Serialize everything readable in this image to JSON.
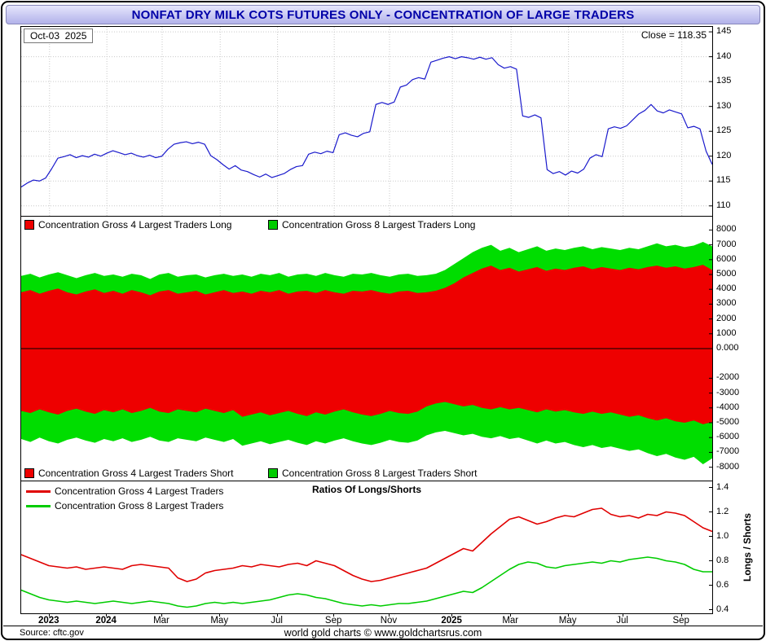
{
  "title": "NONFAT DRY MILK COTS FUTURES ONLY - CONCENTRATION OF LARGE TRADERS",
  "top_panel": {
    "date_label": "Oct-03  2025",
    "close_label": "Close = 118.35"
  },
  "middle_panel": {
    "legend_top": [
      {
        "label": "Concentration Gross 4 Largest Traders Long",
        "color": "#ee0000"
      },
      {
        "label": "Concentration Gross 8 Largest Traders Long",
        "color": "#00cc00"
      }
    ],
    "legend_bottom": [
      {
        "label": "Concentration Gross 4 Largest Traders Short",
        "color": "#ee0000"
      },
      {
        "label": "Concentration Gross 8 Largest Traders Short",
        "color": "#00cc00"
      }
    ]
  },
  "bottom_panel": {
    "title": "Ratios Of Longs/Shorts",
    "ylabel": "Longs / Shorts",
    "legend": [
      {
        "label": "Concentration Gross 4 Largest Traders",
        "color": "#e00000"
      },
      {
        "label": "Concentration Gross 8 Largest Traders",
        "color": "#00cc00"
      }
    ]
  },
  "footer": {
    "source": "Source: cftc.gov",
    "credit": "world gold charts © www.goldchartsrus.com"
  },
  "x_ticks": [
    {
      "label": "2023",
      "pos": 0.041,
      "bold": true
    },
    {
      "label": "2024",
      "pos": 0.124,
      "bold": true
    },
    {
      "label": "Mar",
      "pos": 0.204
    },
    {
      "label": "May",
      "pos": 0.288
    },
    {
      "label": "Jul",
      "pos": 0.371
    },
    {
      "label": "Sep",
      "pos": 0.453
    },
    {
      "label": "Nov",
      "pos": 0.533
    },
    {
      "label": "2025",
      "pos": 0.624,
      "bold": true
    },
    {
      "label": "Mar",
      "pos": 0.709
    },
    {
      "label": "May",
      "pos": 0.792
    },
    {
      "label": "Jul",
      "pos": 0.871
    },
    {
      "label": "Sep",
      "pos": 0.956
    }
  ],
  "chart_data": [
    {
      "type": "line",
      "title": "NFDM futures price",
      "ylim": [
        108,
        146
      ],
      "grid": true,
      "yticks": [
        {
          "v": 145,
          "l": "145"
        },
        {
          "v": 140,
          "l": "140"
        },
        {
          "v": 135,
          "l": "135"
        },
        {
          "v": 130,
          "l": "130"
        },
        {
          "v": 125,
          "l": "125"
        },
        {
          "v": 120,
          "l": "120"
        },
        {
          "v": 115,
          "l": "115"
        },
        {
          "v": 110,
          "l": "110"
        }
      ],
      "series": [
        {
          "name": "price-line",
          "color": "#1a1acc",
          "width": 1.2,
          "values": [
            113.8,
            114.6,
            115.2,
            115.0,
            115.6,
            117.5,
            119.6,
            119.9,
            120.3,
            119.7,
            120.1,
            119.8,
            120.4,
            120.0,
            120.6,
            121.1,
            120.7,
            120.3,
            120.6,
            120.1,
            119.8,
            120.2,
            119.7,
            120.0,
            121.4,
            122.4,
            122.7,
            122.9,
            122.5,
            122.8,
            122.4,
            120.1,
            119.3,
            118.3,
            117.4,
            118.1,
            117.2,
            116.9,
            116.3,
            115.8,
            116.4,
            115.7,
            116.1,
            116.5,
            117.3,
            117.9,
            118.1,
            120.4,
            120.8,
            120.5,
            121.0,
            120.7,
            124.3,
            124.7,
            124.2,
            123.9,
            124.6,
            124.9,
            130.4,
            130.8,
            130.4,
            130.9,
            133.9,
            134.3,
            135.4,
            135.8,
            135.5,
            138.9,
            139.3,
            139.7,
            140.0,
            139.6,
            140.0,
            139.8,
            139.5,
            139.9,
            139.5,
            139.8,
            138.4,
            137.7,
            138.0,
            137.5,
            128.1,
            127.8,
            128.3,
            127.7,
            117.3,
            116.5,
            116.9,
            116.2,
            117.0,
            116.6,
            117.4,
            119.6,
            120.3,
            119.9,
            125.5,
            125.9,
            125.6,
            126.1,
            127.3,
            128.5,
            129.2,
            130.4,
            129.1,
            128.7,
            129.3,
            128.9,
            128.5,
            125.7,
            126.0,
            125.5,
            121.0,
            118.35
          ]
        }
      ]
    },
    {
      "type": "area",
      "title": "Concentration of large traders (contracts, longs positive / shorts negative)",
      "ylim": [
        -8900,
        8900
      ],
      "zeroline": true,
      "yticks": [
        {
          "v": 8000,
          "l": "8000"
        },
        {
          "v": 7000,
          "l": "7000"
        },
        {
          "v": 6000,
          "l": "6000"
        },
        {
          "v": 5000,
          "l": "5000"
        },
        {
          "v": 4000,
          "l": "4000"
        },
        {
          "v": 3000,
          "l": "3000"
        },
        {
          "v": 2000,
          "l": "2000"
        },
        {
          "v": 1000,
          "l": "1000"
        },
        {
          "v": 0,
          "l": "0.000"
        },
        {
          "v": -2000,
          "l": "-2000"
        },
        {
          "v": -3000,
          "l": "-3000"
        },
        {
          "v": -4000,
          "l": "-4000"
        },
        {
          "v": -5000,
          "l": "-5000"
        },
        {
          "v": -6000,
          "l": "-6000"
        },
        {
          "v": -7000,
          "l": "-7000"
        },
        {
          "v": -8000,
          "l": "-8000"
        }
      ],
      "areas": [
        {
          "name": "gross-8-largest-area",
          "color": "#00dd00",
          "top": [
            4900,
            5050,
            4800,
            5000,
            5150,
            4950,
            4750,
            4950,
            5100,
            4900,
            5000,
            4850,
            5050,
            4950,
            4700,
            5000,
            5100,
            4850,
            4950,
            5000,
            4800,
            4950,
            5050,
            4900,
            5000,
            4850,
            5050,
            4950,
            5100,
            4850,
            5000,
            5050,
            4900,
            5100,
            4950,
            4850,
            5050,
            5000,
            5100,
            4950,
            4850,
            5000,
            5050,
            4900,
            4950,
            5050,
            5300,
            5700,
            6100,
            6500,
            6800,
            7000,
            6600,
            6800,
            6500,
            6700,
            6900,
            6600,
            6750,
            6650,
            6800,
            6900,
            6700,
            6850,
            6750,
            6650,
            6800,
            6700,
            6900,
            7100,
            6900,
            7000,
            6850,
            6950,
            7200,
            6900
          ],
          "bottom": [
            -6100,
            -6300,
            -6000,
            -6250,
            -6400,
            -6150,
            -6000,
            -6200,
            -6350,
            -6100,
            -6250,
            -6050,
            -6300,
            -6150,
            -5950,
            -6200,
            -6300,
            -6050,
            -6150,
            -6250,
            -6000,
            -6150,
            -6300,
            -6100,
            -6550,
            -6400,
            -6250,
            -6450,
            -6300,
            -6150,
            -6350,
            -6500,
            -6250,
            -6400,
            -6200,
            -6050,
            -6250,
            -6400,
            -6500,
            -6350,
            -6150,
            -6300,
            -6350,
            -6200,
            -5850,
            -5650,
            -5550,
            -5700,
            -5850,
            -5750,
            -5950,
            -6050,
            -5900,
            -6100,
            -6000,
            -6200,
            -6400,
            -6200,
            -6400,
            -6300,
            -6500,
            -6650,
            -6500,
            -6700,
            -6600,
            -6750,
            -6900,
            -6800,
            -7050,
            -7250,
            -7100,
            -7350,
            -7500,
            -7300,
            -7800,
            -7400
          ]
        },
        {
          "name": "gross-4-largest-area",
          "color": "#ee0000",
          "top": [
            3800,
            3950,
            3700,
            3900,
            4050,
            3800,
            3650,
            3850,
            4000,
            3750,
            3900,
            3700,
            3950,
            3800,
            3600,
            3850,
            3950,
            3700,
            3800,
            3900,
            3650,
            3800,
            3950,
            3750,
            3850,
            3700,
            3900,
            3800,
            3950,
            3700,
            3850,
            3900,
            3750,
            3950,
            3800,
            3700,
            3900,
            3850,
            3950,
            3800,
            3700,
            3850,
            3900,
            3750,
            3800,
            3900,
            4100,
            4400,
            4800,
            5100,
            5400,
            5600,
            5300,
            5450,
            5200,
            5350,
            5500,
            5250,
            5400,
            5300,
            5450,
            5550,
            5350,
            5500,
            5400,
            5300,
            5450,
            5350,
            5500,
            5600,
            5450,
            5550,
            5400,
            5500,
            5650,
            5300
          ],
          "bottom": [
            -4200,
            -4350,
            -4100,
            -4300,
            -4450,
            -4200,
            -4050,
            -4250,
            -4400,
            -4150,
            -4300,
            -4100,
            -4350,
            -4200,
            -4000,
            -4250,
            -4350,
            -4100,
            -4200,
            -4300,
            -4050,
            -4200,
            -4350,
            -4150,
            -4600,
            -4450,
            -4300,
            -4500,
            -4350,
            -4200,
            -4400,
            -4550,
            -4300,
            -4450,
            -4250,
            -4100,
            -4300,
            -4450,
            -4550,
            -4400,
            -4200,
            -4350,
            -4400,
            -4250,
            -3900,
            -3700,
            -3600,
            -3750,
            -3900,
            -3800,
            -4000,
            -4100,
            -3950,
            -4100,
            -4000,
            -4150,
            -4300,
            -4100,
            -4250,
            -4150,
            -4300,
            -4400,
            -4250,
            -4400,
            -4300,
            -4450,
            -4600,
            -4500,
            -4700,
            -4850,
            -4700,
            -4900,
            -5000,
            -4850,
            -5100,
            -4950
          ]
        }
      ]
    },
    {
      "type": "line",
      "title": "Ratios Of Longs/Shorts",
      "ylim": [
        0.37,
        1.45
      ],
      "yticks": [
        {
          "v": 1.4,
          "l": "1.4"
        },
        {
          "v": 1.2,
          "l": "1.2"
        },
        {
          "v": 1.0,
          "l": "1.0"
        },
        {
          "v": 0.8,
          "l": "0.8"
        },
        {
          "v": 0.6,
          "l": "0.6"
        },
        {
          "v": 0.4,
          "l": "0.4"
        }
      ],
      "series": [
        {
          "name": "ratio-4-largest",
          "color": "#e00000",
          "width": 1.6,
          "values": [
            0.85,
            0.82,
            0.79,
            0.76,
            0.75,
            0.74,
            0.75,
            0.73,
            0.74,
            0.75,
            0.74,
            0.73,
            0.76,
            0.77,
            0.76,
            0.75,
            0.74,
            0.66,
            0.63,
            0.65,
            0.7,
            0.72,
            0.73,
            0.74,
            0.76,
            0.75,
            0.77,
            0.76,
            0.75,
            0.77,
            0.78,
            0.76,
            0.8,
            0.78,
            0.76,
            0.72,
            0.68,
            0.65,
            0.63,
            0.64,
            0.66,
            0.68,
            0.7,
            0.72,
            0.74,
            0.78,
            0.82,
            0.86,
            0.9,
            0.88,
            0.95,
            1.02,
            1.08,
            1.14,
            1.16,
            1.13,
            1.1,
            1.12,
            1.15,
            1.17,
            1.16,
            1.19,
            1.22,
            1.23,
            1.18,
            1.16,
            1.17,
            1.15,
            1.18,
            1.17,
            1.2,
            1.19,
            1.17,
            1.12,
            1.07,
            1.04
          ]
        },
        {
          "name": "ratio-8-largest",
          "color": "#00cc00",
          "width": 1.6,
          "values": [
            0.56,
            0.53,
            0.5,
            0.48,
            0.47,
            0.46,
            0.47,
            0.46,
            0.45,
            0.46,
            0.47,
            0.46,
            0.45,
            0.46,
            0.47,
            0.46,
            0.45,
            0.43,
            0.42,
            0.43,
            0.45,
            0.46,
            0.45,
            0.46,
            0.45,
            0.46,
            0.47,
            0.48,
            0.5,
            0.52,
            0.53,
            0.52,
            0.5,
            0.49,
            0.47,
            0.45,
            0.44,
            0.43,
            0.44,
            0.43,
            0.44,
            0.45,
            0.45,
            0.46,
            0.47,
            0.49,
            0.51,
            0.53,
            0.55,
            0.54,
            0.58,
            0.63,
            0.68,
            0.73,
            0.77,
            0.79,
            0.78,
            0.75,
            0.74,
            0.76,
            0.77,
            0.78,
            0.79,
            0.78,
            0.8,
            0.79,
            0.81,
            0.82,
            0.83,
            0.82,
            0.8,
            0.79,
            0.77,
            0.73,
            0.71,
            0.71
          ]
        }
      ]
    }
  ]
}
